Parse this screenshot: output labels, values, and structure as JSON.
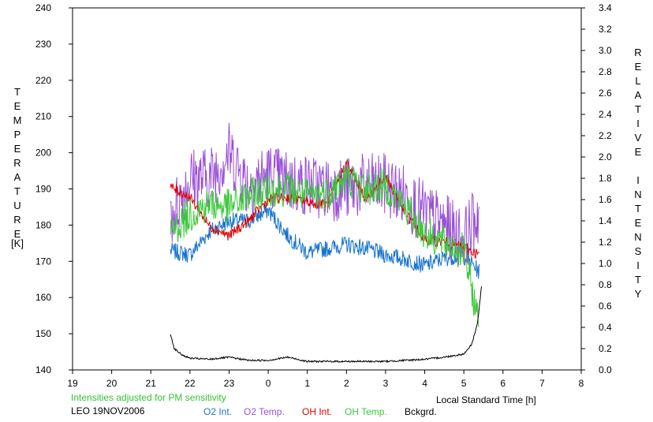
{
  "chart_data": {
    "type": "line",
    "title": "",
    "xlabel": "Local Standard Time [h]",
    "ylabel_left": "TEMPERATURE",
    "ylabel_left_unit": "[K]",
    "ylabel_right": "RELATIVE INTENSITY",
    "x_tick_labels": [
      "19",
      "20",
      "21",
      "22",
      "23",
      "0",
      "1",
      "2",
      "3",
      "4",
      "5",
      "6",
      "7",
      "8"
    ],
    "x_range_hours": [
      19,
      32
    ],
    "y_left_ticks": [
      140,
      150,
      160,
      170,
      180,
      190,
      200,
      210,
      220,
      230,
      240
    ],
    "ylim_left": [
      140,
      240
    ],
    "y_right_ticks": [
      "0.0",
      "0.2",
      "0.4",
      "0.6",
      "0.8",
      "1.0",
      "1.2",
      "1.4",
      "1.6",
      "1.8",
      "2.0",
      "2.2",
      "2.4",
      "2.6",
      "2.8",
      "3.0",
      "3.2",
      "3.4"
    ],
    "ylim_right": [
      0,
      3.4
    ],
    "grid": false,
    "annotations": {
      "note": "Intensities adjusted for PM sensitivity",
      "station": "LEO 19NOV2006"
    },
    "colors": {
      "o2_int": "#1874cd",
      "o2_temp": "#9a4fd6",
      "oh_int": "#e00000",
      "oh_temp": "#3cc83c",
      "bckgrd": "#000000",
      "note": "#33c233"
    },
    "series": [
      {
        "name": "O2 Int.",
        "axis": "right",
        "x": [
          21.5,
          22.0,
          22.5,
          23.0,
          23.5,
          24.0,
          24.5,
          25.0,
          25.5,
          26.0,
          26.5,
          27.0,
          27.5,
          28.0,
          28.5,
          29.0,
          29.4
        ],
        "values": [
          1.12,
          1.08,
          1.3,
          1.4,
          1.4,
          1.5,
          1.26,
          1.1,
          1.14,
          1.18,
          1.14,
          1.08,
          1.04,
          0.98,
          1.05,
          1.08,
          0.92
        ]
      },
      {
        "name": "O2 Temp.",
        "axis": "left",
        "x": [
          21.5,
          22.0,
          22.5,
          23.0,
          23.5,
          24.0,
          24.5,
          25.0,
          25.5,
          26.0,
          26.5,
          27.0,
          27.5,
          28.0,
          28.5,
          29.0,
          29.4
        ],
        "values": [
          182,
          193,
          193,
          200,
          191,
          194,
          192,
          191,
          190,
          190,
          191,
          191,
          188,
          183,
          180,
          176,
          184
        ]
      },
      {
        "name": "OH Int.",
        "axis": "right",
        "x": [
          21.5,
          22.0,
          22.5,
          23.0,
          23.5,
          24.0,
          24.5,
          25.0,
          25.5,
          26.0,
          26.5,
          27.0,
          27.5,
          28.0,
          28.5,
          29.0,
          29.4
        ],
        "values": [
          1.72,
          1.62,
          1.35,
          1.26,
          1.4,
          1.6,
          1.62,
          1.58,
          1.55,
          1.95,
          1.6,
          1.82,
          1.48,
          1.22,
          1.2,
          1.15,
          1.08
        ]
      },
      {
        "name": "OH Temp.",
        "axis": "left",
        "x": [
          21.5,
          22.0,
          22.5,
          23.0,
          23.5,
          24.0,
          24.5,
          25.0,
          25.5,
          26.0,
          26.5,
          27.0,
          27.5,
          28.0,
          28.5,
          29.0,
          29.4
        ],
        "values": [
          178,
          183,
          186,
          185,
          188,
          190,
          190,
          188,
          189,
          193,
          190,
          191,
          185,
          178,
          175,
          173,
          152
        ]
      },
      {
        "name": "Bckgrd.",
        "axis": "right",
        "x": [
          21.5,
          21.6,
          21.8,
          22.0,
          22.5,
          23.0,
          23.5,
          24.0,
          24.5,
          25.0,
          25.5,
          26.0,
          26.5,
          27.0,
          27.5,
          28.0,
          28.5,
          29.0,
          29.2,
          29.35,
          29.45
        ],
        "values": [
          0.34,
          0.2,
          0.14,
          0.11,
          0.1,
          0.12,
          0.09,
          0.09,
          0.12,
          0.08,
          0.08,
          0.08,
          0.08,
          0.08,
          0.09,
          0.1,
          0.12,
          0.15,
          0.24,
          0.44,
          0.78
        ]
      }
    ]
  }
}
